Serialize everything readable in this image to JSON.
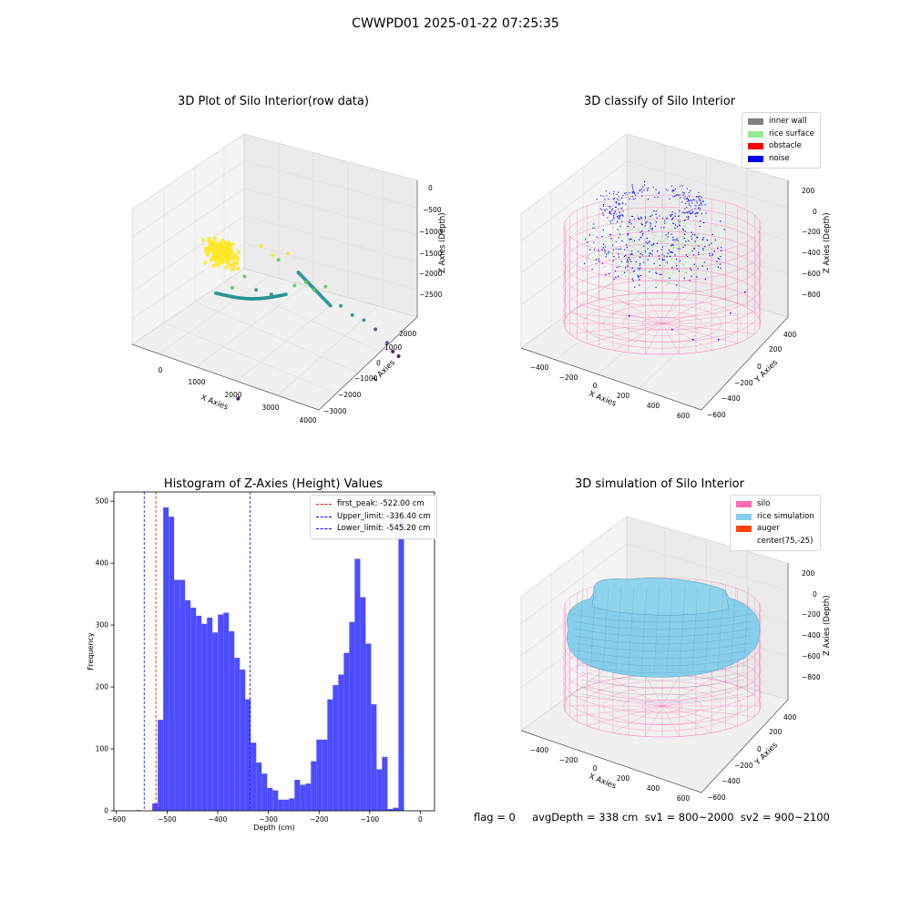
{
  "suptitle": "CWWPD01 2025-01-22 07:25:35",
  "footer": "flag = 0     avgDepth = 338 cm  sv1 = 800~2000  sv2 = 900~2100",
  "colors": {
    "inner_wall": "#808080",
    "rice_surface": "#90ee90",
    "obstacle": "#ff0000",
    "noise": "#0000ff",
    "silo": "#ff69b4",
    "rice_simulation": "#87ceeb",
    "auger": "#ff4500",
    "hist_bar": "#4d4dff",
    "first_peak_line": "#ff0000",
    "limit_line": "#0000ff"
  },
  "chart_data": [
    {
      "type": "scatter",
      "projection": "3d",
      "title": "3D Plot of Silo Interior(row data)",
      "xlabel": "X Axies",
      "ylabel": "Y Axies",
      "zlabel": "Z Axies (Depth)",
      "xticks": [
        "0",
        "1000",
        "2000",
        "3000",
        "4000"
      ],
      "yticks": [
        "−3000",
        "−2000",
        "−1000",
        "0",
        "1000",
        "2000"
      ],
      "zticks": [
        "0",
        "−500",
        "−1000",
        "−1500",
        "−2000",
        "−2500"
      ],
      "colormap": "viridis, by depth",
      "points": [
        {
          "x": 700,
          "y": -1200,
          "z": -50
        },
        {
          "x": 900,
          "y": -1000,
          "z": -80
        },
        {
          "x": 500,
          "y": -1300,
          "z": -30
        },
        {
          "x": 800,
          "y": -700,
          "z": -150
        },
        {
          "x": 1100,
          "y": 100,
          "z": -300
        },
        {
          "x": 1300,
          "y": 300,
          "z": -500
        },
        {
          "x": 1400,
          "y": 400,
          "z": -600
        },
        {
          "x": 1600,
          "y": 500,
          "z": -400
        },
        {
          "x": 1000,
          "y": -500,
          "z": -900
        },
        {
          "x": 900,
          "y": -900,
          "z": -1100
        },
        {
          "x": 1200,
          "y": -300,
          "z": -1200
        },
        {
          "x": 1500,
          "y": -100,
          "z": -1250
        },
        {
          "x": 1900,
          "y": 300,
          "z": -1000
        },
        {
          "x": 2100,
          "y": 500,
          "z": -900
        },
        {
          "x": 2200,
          "y": 700,
          "z": -1100
        },
        {
          "x": 2400,
          "y": 900,
          "z": -1000
        },
        {
          "x": 2700,
          "y": 1100,
          "z": -1400
        },
        {
          "x": 2900,
          "y": 1300,
          "z": -1600
        },
        {
          "x": 3100,
          "y": 1500,
          "z": -1700
        },
        {
          "x": 3300,
          "y": 1700,
          "z": -1900
        },
        {
          "x": 3500,
          "y": 1900,
          "z": -2200
        },
        {
          "x": 3600,
          "y": 2000,
          "z": -2400
        },
        {
          "x": 3700,
          "y": 2100,
          "z": -2500
        },
        {
          "x": 2000,
          "y": -2500,
          "z": -2900
        }
      ]
    },
    {
      "type": "scatter",
      "projection": "3d",
      "title": "3D classify of Silo Interior",
      "xlabel": "X Axies",
      "ylabel": "Y Axies",
      "zlabel": "Z Axies (Depth)",
      "xticks": [
        "−400",
        "−200",
        "0",
        "200",
        "400",
        "600"
      ],
      "yticks": [
        "−600",
        "−400",
        "−200",
        "0",
        "200",
        "400"
      ],
      "zticks": [
        "200",
        "0",
        "−200",
        "−400",
        "−600",
        "−800"
      ],
      "legend": {
        "position": "top-right",
        "entries": [
          "inner wall",
          "rice surface",
          "obstacle",
          "noise"
        ]
      }
    },
    {
      "type": "bar",
      "title": "Histogram of Z-Axies (Height) Values",
      "xlabel": "Depth (cm)",
      "ylabel": "Frequency",
      "xlim": [
        -605,
        28
      ],
      "ylim": [
        0,
        515
      ],
      "xticks": [
        -600,
        -500,
        -400,
        -300,
        -200,
        -100,
        0
      ],
      "xtick_labels": [
        "−600",
        "−500",
        "−400",
        "−300",
        "−200",
        "−100",
        "0"
      ],
      "yticks": [
        0,
        100,
        200,
        300,
        400,
        500
      ],
      "bin_start": -583.2,
      "bin_width": 10.8,
      "values": [
        0,
        0,
        1,
        0,
        0,
        12,
        147,
        490,
        475,
        373,
        373,
        340,
        328,
        315,
        302,
        312,
        288,
        317,
        320,
        290,
        247,
        228,
        180,
        110,
        78,
        60,
        37,
        33,
        18,
        18,
        20,
        50,
        42,
        44,
        80,
        115,
        115,
        180,
        203,
        220,
        255,
        305,
        407,
        345,
        270,
        172,
        67,
        87,
        3,
        5,
        470
      ],
      "vlines": [
        {
          "label": "first_peak: -522.00 cm",
          "x": -522.0
        },
        {
          "label": "Upper_limit: -336.40 cm",
          "x": -336.4
        },
        {
          "label": "Lower_limit: -545.20 cm",
          "x": -545.2
        }
      ],
      "legend": {
        "position": "top-right"
      }
    },
    {
      "type": "surface",
      "projection": "3d",
      "title": "3D simulation of Silo Interior",
      "xlabel": "X Axies",
      "ylabel": "Y Axies",
      "zlabel": "Z Axies (Depth)",
      "xticks": [
        "−400",
        "−200",
        "0",
        "200",
        "400",
        "600"
      ],
      "yticks": [
        "−600",
        "−400",
        "−200",
        "0",
        "200",
        "400"
      ],
      "zticks": [
        "200",
        "0",
        "−200",
        "−400",
        "−600",
        "−800"
      ],
      "legend": {
        "position": "top-right",
        "entries": [
          "silo",
          "rice simulation",
          "auger",
          "center(75,-25)"
        ]
      }
    }
  ]
}
